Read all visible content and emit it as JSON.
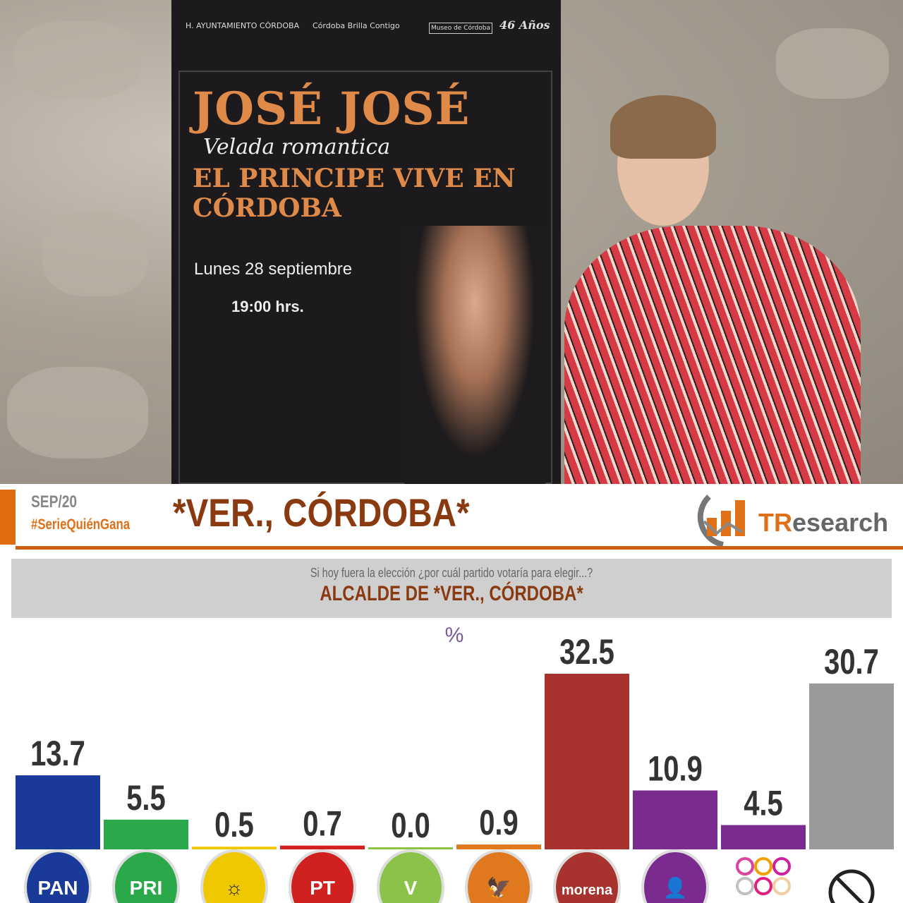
{
  "photo": {
    "poster": {
      "logo1": "H. AYUNTAMIENTO CÓRDOBA",
      "logo2": "Córdoba Brilla Contigo",
      "logo3": "Museo de Córdoba",
      "logo4": "46 Años",
      "title": "JOSÉ JOSÉ",
      "subtitle": "Velada romantica",
      "headline": "EL PRINCIPE VIVE EN CÓRDOBA",
      "date": "Lunes 28 septiembre",
      "time": "19:00 hrs."
    }
  },
  "header": {
    "date": "SEP/20",
    "hashtag": "#SerieQuiénGana",
    "title": "*VER., CÓRDOBA*",
    "brand": "TResearch",
    "brand_t": "TR",
    "brand_rest": "esearch",
    "accent": "#e06c10"
  },
  "question": {
    "text": "Si hoy fuera la elección ¿por cuál partido votaría para elegir...?",
    "office": "ALCALDE DE *VER., CÓRDOBA*"
  },
  "chart_data": {
    "type": "bar",
    "unit_label": "%",
    "categories": [
      "PAN",
      "PRI",
      "PRD",
      "PT",
      "VERDE",
      "MOVIMIENTO CIUDADANO",
      "morena",
      "CANDIDATURA INDEPENDIENTE",
      "Otros",
      "Ninguno"
    ],
    "values": [
      13.7,
      5.5,
      0.5,
      0.7,
      0.0,
      0.9,
      32.5,
      10.9,
      4.5,
      30.7
    ],
    "labels": [
      "13.7",
      "5.5",
      "0.5",
      "0.7",
      "0.0",
      "0.9",
      "32.5",
      "10.9",
      "4.5",
      "30.7"
    ],
    "colors": [
      "#1a3a9a",
      "#2aa84a",
      "#f0c800",
      "#d02020",
      "#8bc34a",
      "#e07820",
      "#a8322e",
      "#7b2a8f",
      "#7b2a8f",
      "#9a9a9a"
    ],
    "ylim": [
      0,
      35
    ],
    "grid": false
  }
}
